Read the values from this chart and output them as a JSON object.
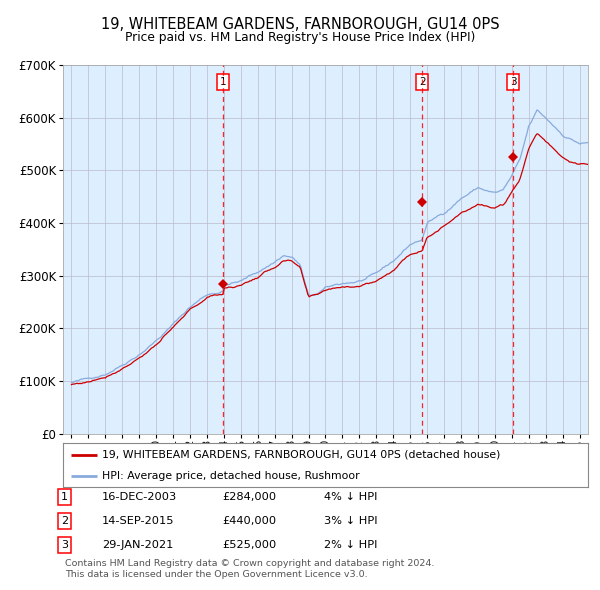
{
  "title": "19, WHITEBEAM GARDENS, FARNBOROUGH, GU14 0PS",
  "subtitle": "Price paid vs. HM Land Registry's House Price Index (HPI)",
  "legend_line1": "19, WHITEBEAM GARDENS, FARNBOROUGH, GU14 0PS (detached house)",
  "legend_line2": "HPI: Average price, detached house, Rushmoor",
  "transactions": [
    {
      "num": 1,
      "date": "16-DEC-2003",
      "price": 284000,
      "pct": "4%",
      "dir": "↓",
      "x_year": 2003.96
    },
    {
      "num": 2,
      "date": "14-SEP-2015",
      "price": 440000,
      "pct": "3%",
      "dir": "↓",
      "x_year": 2015.71
    },
    {
      "num": 3,
      "date": "29-JAN-2021",
      "price": 525000,
      "pct": "2%",
      "dir": "↓",
      "x_year": 2021.08
    }
  ],
  "footnote1": "Contains HM Land Registry data © Crown copyright and database right 2024.",
  "footnote2": "This data is licensed under the Open Government Licence v3.0.",
  "hpi_color": "#88aadd",
  "price_color": "#cc0000",
  "bg_color": "#ddeeff",
  "grid_color": "#bbbbcc",
  "ylim": [
    0,
    700000
  ],
  "xlim_start": 1994.5,
  "xlim_end": 2025.5
}
